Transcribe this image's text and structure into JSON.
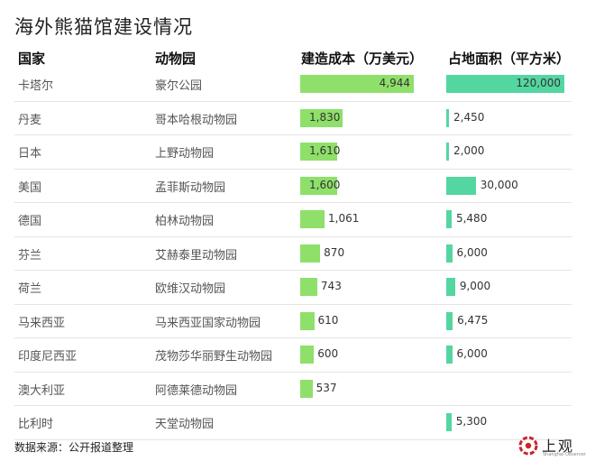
{
  "title": "海外熊猫馆建设情况",
  "headers": {
    "country": "国家",
    "zoo": "动物园",
    "cost": "建造成本（万美元）",
    "area": "占地面积（平方米）"
  },
  "colors": {
    "cost_bar": "#8ee06a",
    "area_bar": "#54d6a0"
  },
  "chart_data": {
    "type": "table",
    "title": "海外熊猫馆建设情况",
    "columns": [
      "国家",
      "动物园",
      "建造成本（万美元）",
      "占地面积（平方米）"
    ],
    "rows": [
      {
        "country": "卡塔尔",
        "zoo": "豪尔公园",
        "cost": 4944,
        "cost_label": "4,944",
        "area": 120000,
        "area_label": "120,000"
      },
      {
        "country": "丹麦",
        "zoo": "哥本哈根动物园",
        "cost": 1830,
        "cost_label": "1,830",
        "area": 2450,
        "area_label": "2,450"
      },
      {
        "country": "日本",
        "zoo": "上野动物园",
        "cost": 1610,
        "cost_label": "1,610",
        "area": 2000,
        "area_label": "2,000"
      },
      {
        "country": "美国",
        "zoo": "孟菲斯动物园",
        "cost": 1600,
        "cost_label": "1,600",
        "area": 30000,
        "area_label": "30,000"
      },
      {
        "country": "德国",
        "zoo": "柏林动物园",
        "cost": 1061,
        "cost_label": "1,061",
        "area": 5480,
        "area_label": "5,480"
      },
      {
        "country": "芬兰",
        "zoo": "艾赫泰里动物园",
        "cost": 870,
        "cost_label": "870",
        "area": 6000,
        "area_label": "6,000"
      },
      {
        "country": "荷兰",
        "zoo": "欧维汉动物园",
        "cost": 743,
        "cost_label": "743",
        "area": 9000,
        "area_label": "9,000"
      },
      {
        "country": "马来西亚",
        "zoo": "马来西亚国家动物园",
        "cost": 610,
        "cost_label": "610",
        "area": 6475,
        "area_label": "6,475"
      },
      {
        "country": "印度尼西亚",
        "zoo": "茂物莎华丽野生动物园",
        "cost": 600,
        "cost_label": "600",
        "area": 6000,
        "area_label": "6,000"
      },
      {
        "country": "澳大利亚",
        "zoo": "阿德莱德动物园",
        "cost": 537,
        "cost_label": "537",
        "area": null,
        "area_label": ""
      },
      {
        "country": "比利时",
        "zoo": "天堂动物园",
        "cost": null,
        "cost_label": "",
        "area": 5300,
        "area_label": "5,300"
      }
    ]
  },
  "source": "数据来源：公开报道整理",
  "logo": {
    "text": "上观",
    "subtitle": "Shanghai Observer",
    "icon": "shanghai-observer-logo-icon"
  }
}
